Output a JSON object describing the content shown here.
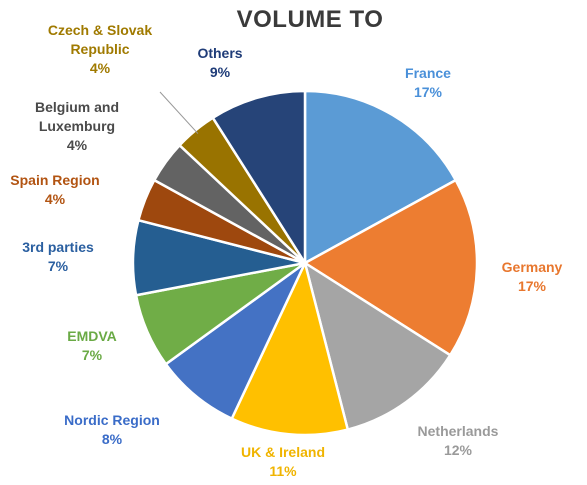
{
  "chart_data": {
    "type": "pie",
    "title": "VOLUME TO",
    "value_unit": "%",
    "slices": [
      {
        "label_lines": [
          "France"
        ],
        "value": 17,
        "color": "#5b9bd5"
      },
      {
        "label_lines": [
          "Germany"
        ],
        "value": 17,
        "color": "#ed7d31"
      },
      {
        "label_lines": [
          "Netherlands"
        ],
        "value": 12,
        "color": "#a5a5a5"
      },
      {
        "label_lines": [
          "UK & Ireland"
        ],
        "value": 11,
        "color": "#ffc000"
      },
      {
        "label_lines": [
          "Nordic Region"
        ],
        "value": 8,
        "color": "#4472c4"
      },
      {
        "label_lines": [
          "EMDVA"
        ],
        "value": 7,
        "color": "#70ad47"
      },
      {
        "label_lines": [
          "3rd parties"
        ],
        "value": 7,
        "color": "#255e91"
      },
      {
        "label_lines": [
          "Spain Region"
        ],
        "value": 4,
        "color": "#9e480e"
      },
      {
        "label_lines": [
          "Belgium and",
          "Luxemburg"
        ],
        "value": 4,
        "color": "#636363"
      },
      {
        "label_lines": [
          "Czech & Slovak",
          "Republic"
        ],
        "value": 4,
        "color": "#997300"
      },
      {
        "label_lines": [
          "Others"
        ],
        "value": 9,
        "color": "#264478"
      }
    ],
    "label_colors": [
      "#4a90d9",
      "#e8772e",
      "#9a9a9a",
      "#f0b400",
      "#3a6cc8",
      "#6aaa45",
      "#2a5fa0",
      "#b25412",
      "#4a4a4a",
      "#a07a00",
      "#1f3c78"
    ]
  }
}
